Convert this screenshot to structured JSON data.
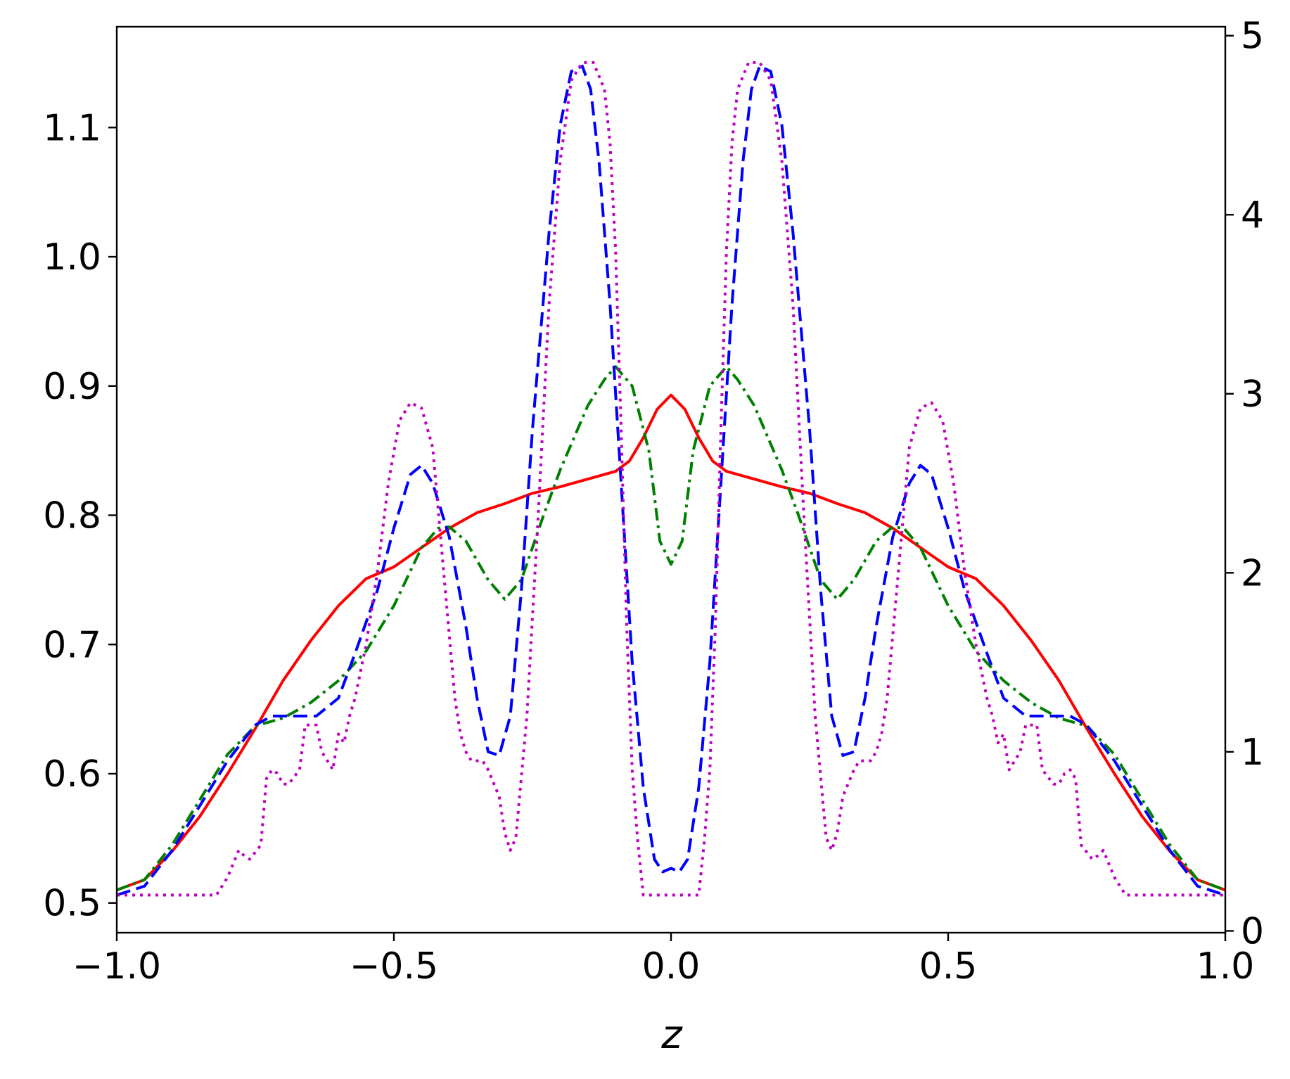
{
  "chart_data": {
    "type": "line",
    "xlabel": "z",
    "ylabel": "",
    "ylabel_right": "",
    "xlim": [
      -1.0,
      1.0
    ],
    "ylim": [
      0.477,
      1.178
    ],
    "ylim_right": [
      -0.01,
      5.05
    ],
    "grid": false,
    "x_ticks": [
      -1.0,
      -0.5,
      0.0,
      0.5,
      1.0
    ],
    "x_tick_labels": [
      "−1.0",
      "−0.5",
      "0.0",
      "0.5",
      "1.0"
    ],
    "y_ticks": [
      0.5,
      0.6,
      0.7,
      0.8,
      0.9,
      1.0,
      1.1
    ],
    "y_tick_labels": [
      "0.5",
      "0.6",
      "0.7",
      "0.8",
      "0.9",
      "1.0",
      "1.1"
    ],
    "y_right_ticks": [
      0,
      1,
      2,
      3,
      4,
      5
    ],
    "y_right_tick_labels": [
      "0",
      "1",
      "2",
      "3",
      "4",
      "5"
    ],
    "series": [
      {
        "color": "#ff0000",
        "linestyle": "solid",
        "axis": "left",
        "x": [
          -1.0,
          -0.95,
          -0.9,
          -0.85,
          -0.8,
          -0.75,
          -0.7,
          -0.65,
          -0.6,
          -0.55,
          -0.5,
          -0.45,
          -0.4,
          -0.35,
          -0.3,
          -0.25,
          -0.2,
          -0.15,
          -0.1,
          -0.075,
          -0.05,
          -0.025,
          0.0,
          0.025,
          0.05,
          0.075,
          0.1,
          0.15,
          0.2,
          0.25,
          0.3,
          0.35,
          0.4,
          0.45,
          0.5,
          0.55,
          0.6,
          0.65,
          0.7,
          0.75,
          0.8,
          0.85,
          0.9,
          0.95,
          1.0
        ],
        "y": [
          0.51,
          0.518,
          0.54,
          0.567,
          0.6,
          0.635,
          0.672,
          0.703,
          0.73,
          0.751,
          0.76,
          0.775,
          0.79,
          0.802,
          0.809,
          0.817,
          0.822,
          0.828,
          0.834,
          0.842,
          0.86,
          0.882,
          0.893,
          0.882,
          0.86,
          0.842,
          0.834,
          0.828,
          0.822,
          0.817,
          0.809,
          0.802,
          0.79,
          0.775,
          0.76,
          0.751,
          0.73,
          0.703,
          0.672,
          0.635,
          0.6,
          0.567,
          0.54,
          0.518,
          0.51
        ]
      },
      {
        "color": "#008000",
        "linestyle": "dashdot",
        "axis": "left",
        "x": [
          -1.0,
          -0.95,
          -0.9,
          -0.85,
          -0.8,
          -0.75,
          -0.7,
          -0.65,
          -0.6,
          -0.55,
          -0.5,
          -0.45,
          -0.42,
          -0.4,
          -0.37,
          -0.33,
          -0.3,
          -0.27,
          -0.23,
          -0.2,
          -0.15,
          -0.12,
          -0.1,
          -0.07,
          -0.04,
          -0.02,
          0.0,
          0.02,
          0.04,
          0.07,
          0.1,
          0.12,
          0.15,
          0.2,
          0.23,
          0.27,
          0.3,
          0.33,
          0.37,
          0.4,
          0.42,
          0.45,
          0.5,
          0.55,
          0.6,
          0.65,
          0.7,
          0.75,
          0.8,
          0.85,
          0.9,
          0.95,
          1.0
        ],
        "y": [
          0.51,
          0.518,
          0.545,
          0.58,
          0.615,
          0.637,
          0.643,
          0.655,
          0.672,
          0.695,
          0.73,
          0.775,
          0.79,
          0.791,
          0.78,
          0.75,
          0.735,
          0.75,
          0.8,
          0.835,
          0.885,
          0.905,
          0.915,
          0.9,
          0.85,
          0.78,
          0.762,
          0.78,
          0.85,
          0.9,
          0.915,
          0.905,
          0.885,
          0.835,
          0.8,
          0.75,
          0.735,
          0.75,
          0.78,
          0.791,
          0.79,
          0.775,
          0.73,
          0.695,
          0.672,
          0.655,
          0.643,
          0.637,
          0.615,
          0.58,
          0.545,
          0.518,
          0.51
        ]
      },
      {
        "color": "#0000ff",
        "linestyle": "dashed",
        "axis": "right",
        "x": [
          -1.0,
          -0.95,
          -0.9,
          -0.85,
          -0.8,
          -0.75,
          -0.72,
          -0.7,
          -0.67,
          -0.64,
          -0.6,
          -0.57,
          -0.53,
          -0.5,
          -0.47,
          -0.45,
          -0.43,
          -0.4,
          -0.37,
          -0.35,
          -0.33,
          -0.31,
          -0.29,
          -0.27,
          -0.25,
          -0.22,
          -0.2,
          -0.18,
          -0.16,
          -0.145,
          -0.13,
          -0.11,
          -0.09,
          -0.07,
          -0.05,
          -0.03,
          -0.015,
          0.0,
          0.015,
          0.03,
          0.05,
          0.07,
          0.09,
          0.11,
          0.13,
          0.145,
          0.16,
          0.18,
          0.2,
          0.22,
          0.25,
          0.27,
          0.29,
          0.31,
          0.33,
          0.35,
          0.37,
          0.4,
          0.43,
          0.45,
          0.47,
          0.5,
          0.53,
          0.57,
          0.6,
          0.64,
          0.67,
          0.7,
          0.72,
          0.75,
          0.8,
          0.85,
          0.9,
          0.95,
          1.0
        ],
        "y": [
          0.2,
          0.25,
          0.45,
          0.7,
          0.95,
          1.15,
          1.2,
          1.2,
          1.2,
          1.2,
          1.3,
          1.55,
          1.9,
          2.25,
          2.55,
          2.6,
          2.5,
          2.2,
          1.7,
          1.3,
          1.0,
          0.98,
          1.2,
          1.9,
          2.8,
          3.9,
          4.5,
          4.8,
          4.83,
          4.7,
          4.3,
          3.5,
          2.5,
          1.5,
          0.8,
          0.4,
          0.33,
          0.35,
          0.33,
          0.4,
          0.8,
          1.5,
          2.5,
          3.5,
          4.3,
          4.7,
          4.83,
          4.8,
          4.5,
          3.9,
          2.8,
          1.9,
          1.2,
          0.98,
          1.0,
          1.3,
          1.7,
          2.2,
          2.5,
          2.6,
          2.55,
          2.25,
          1.9,
          1.55,
          1.3,
          1.2,
          1.2,
          1.2,
          1.2,
          1.15,
          0.95,
          0.7,
          0.45,
          0.25,
          0.2
        ]
      },
      {
        "color": "#bf00bf",
        "linestyle": "dotted",
        "axis": "right",
        "x": [
          -1.0,
          -0.9,
          -0.82,
          -0.8,
          -0.78,
          -0.77,
          -0.76,
          -0.74,
          -0.73,
          -0.72,
          -0.71,
          -0.7,
          -0.69,
          -0.68,
          -0.67,
          -0.66,
          -0.64,
          -0.63,
          -0.61,
          -0.6,
          -0.59,
          -0.58,
          -0.57,
          -0.55,
          -0.53,
          -0.51,
          -0.49,
          -0.47,
          -0.45,
          -0.43,
          -0.41,
          -0.39,
          -0.38,
          -0.37,
          -0.36,
          -0.34,
          -0.33,
          -0.31,
          -0.3,
          -0.29,
          -0.28,
          -0.26,
          -0.24,
          -0.22,
          -0.2,
          -0.18,
          -0.16,
          -0.14,
          -0.12,
          -0.11,
          -0.1,
          -0.09,
          -0.08,
          -0.07,
          -0.06,
          -0.05,
          0.0,
          0.05,
          0.06,
          0.07,
          0.08,
          0.09,
          0.1,
          0.11,
          0.12,
          0.14,
          0.16,
          0.18,
          0.2,
          0.22,
          0.24,
          0.26,
          0.28,
          0.29,
          0.3,
          0.31,
          0.33,
          0.34,
          0.36,
          0.37,
          0.38,
          0.39,
          0.41,
          0.43,
          0.45,
          0.47,
          0.49,
          0.51,
          0.53,
          0.55,
          0.57,
          0.58,
          0.59,
          0.6,
          0.61,
          0.63,
          0.64,
          0.66,
          0.67,
          0.68,
          0.69,
          0.7,
          0.71,
          0.72,
          0.73,
          0.74,
          0.76,
          0.77,
          0.78,
          0.8,
          0.82,
          0.9,
          1.0
        ],
        "y": [
          0.2,
          0.2,
          0.2,
          0.3,
          0.45,
          0.42,
          0.4,
          0.48,
          0.85,
          0.9,
          0.88,
          0.82,
          0.82,
          0.86,
          0.9,
          1.15,
          1.15,
          1.0,
          0.9,
          1.1,
          1.05,
          1.2,
          1.3,
          1.6,
          2.0,
          2.5,
          2.85,
          2.95,
          2.92,
          2.7,
          2.0,
          1.3,
          1.1,
          1.0,
          0.95,
          0.95,
          0.9,
          0.75,
          0.55,
          0.45,
          0.52,
          1.2,
          2.3,
          3.5,
          4.3,
          4.75,
          4.85,
          4.85,
          4.7,
          4.4,
          3.8,
          2.8,
          1.7,
          0.9,
          0.5,
          0.2,
          0.2,
          0.2,
          0.5,
          0.9,
          1.7,
          2.8,
          3.8,
          4.4,
          4.7,
          4.85,
          4.85,
          4.75,
          4.3,
          3.5,
          2.3,
          1.2,
          0.52,
          0.45,
          0.55,
          0.75,
          0.9,
          0.95,
          0.95,
          1.0,
          1.1,
          1.3,
          2.0,
          2.7,
          2.92,
          2.95,
          2.85,
          2.5,
          2.0,
          1.6,
          1.3,
          1.2,
          1.05,
          1.1,
          0.9,
          1.0,
          1.15,
          1.15,
          0.9,
          0.86,
          0.82,
          0.82,
          0.88,
          0.9,
          0.85,
          0.48,
          0.4,
          0.42,
          0.45,
          0.3,
          0.2,
          0.2,
          0.2
        ]
      }
    ]
  }
}
